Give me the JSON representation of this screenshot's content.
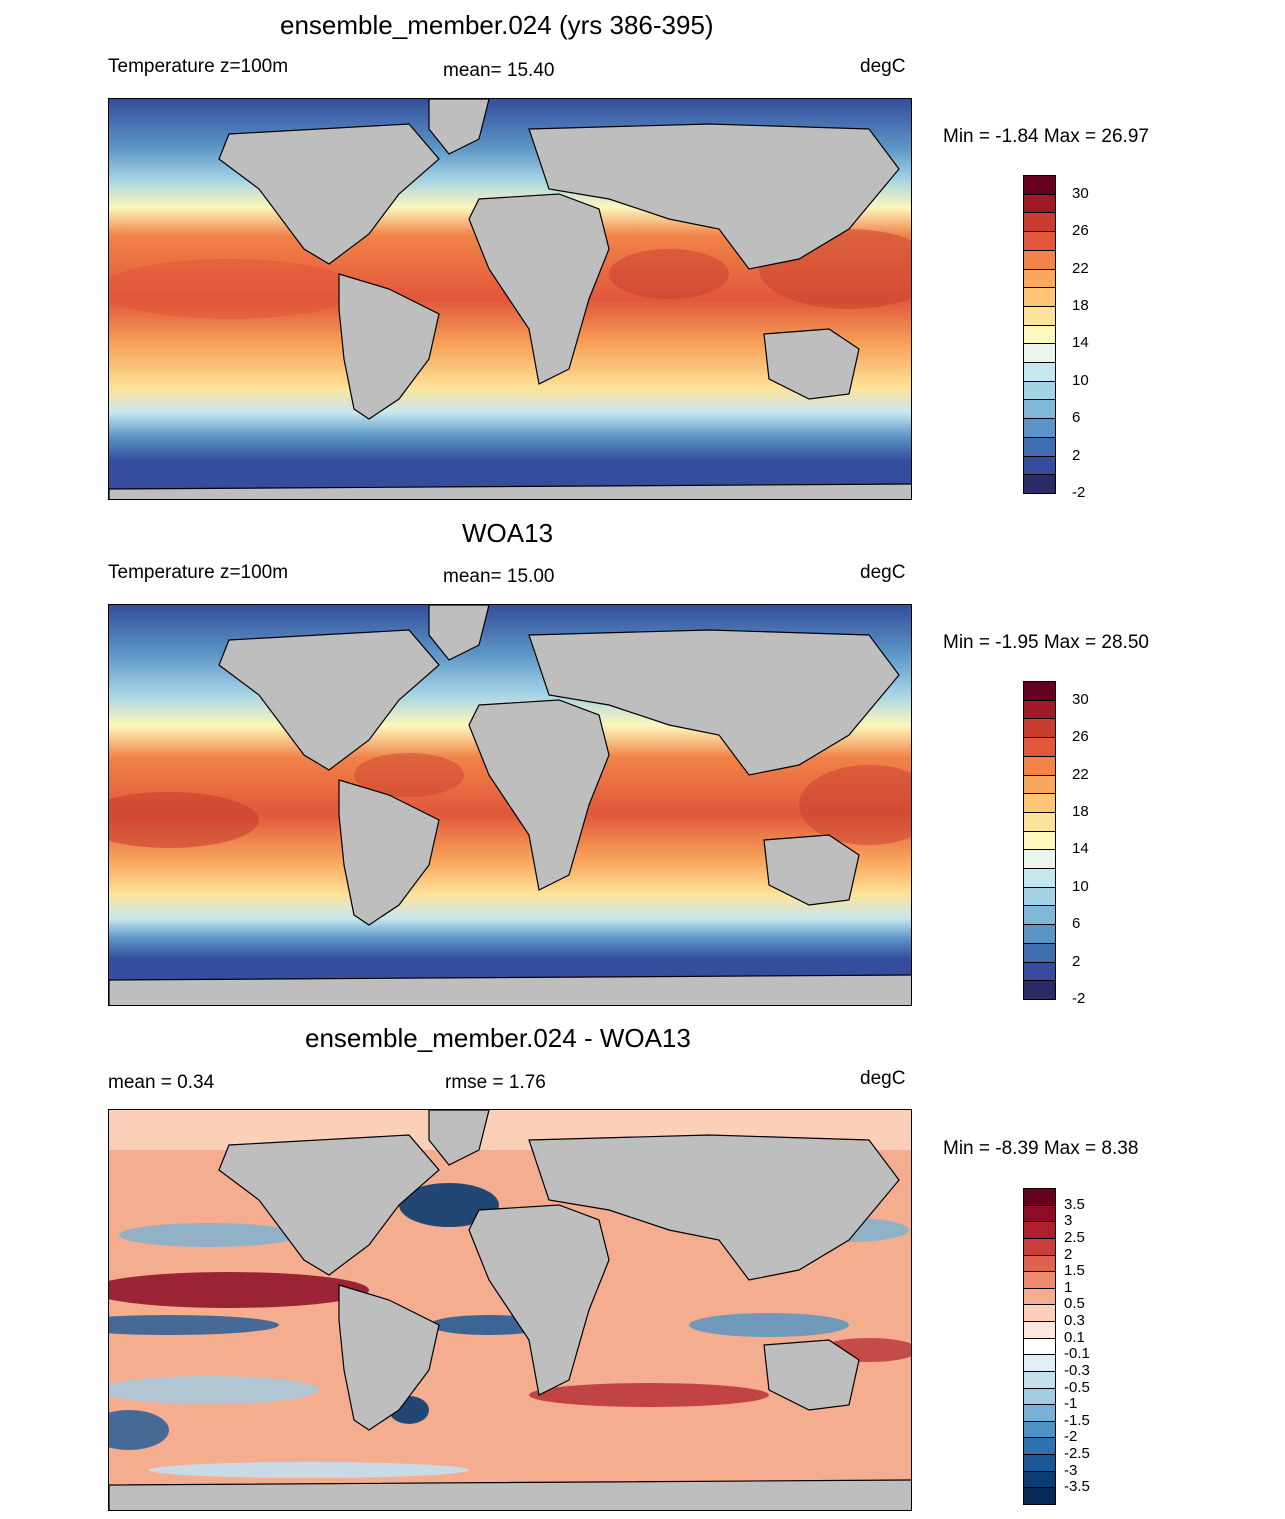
{
  "panels": [
    {
      "title": "ensemble_member.024 (yrs 386-395)",
      "left_label": "Temperature z=100m",
      "center_label": "mean=  15.40",
      "right_label": "degC",
      "minmax": "Min =  -1.84 Max =  26.97",
      "colorbar": {
        "labels": [
          "30",
          "26",
          "22",
          "18",
          "14",
          "10",
          "6",
          "2",
          "-2"
        ],
        "colors": [
          "#67001f",
          "#9e1a27",
          "#c83d30",
          "#e2573a",
          "#f18348",
          "#f9a85d",
          "#fdc677",
          "#fde39a",
          "#fdf7bc",
          "#e9f4ea",
          "#c7e7f0",
          "#a4d3e6",
          "#7fb7d8",
          "#5b95c6",
          "#3f6db0",
          "#354d9c",
          "#2a2c6a"
        ]
      }
    },
    {
      "title": "WOA13",
      "left_label": "Temperature z=100m",
      "center_label": "mean=  15.00",
      "right_label": "degC",
      "minmax": "Min =  -1.95 Max =  28.50",
      "colorbar": {
        "labels": [
          "30",
          "26",
          "22",
          "18",
          "14",
          "10",
          "6",
          "2",
          "-2"
        ],
        "colors": [
          "#67001f",
          "#9e1a27",
          "#c83d30",
          "#e2573a",
          "#f18348",
          "#f9a85d",
          "#fdc677",
          "#fde39a",
          "#fdf7bc",
          "#e9f4ea",
          "#c7e7f0",
          "#a4d3e6",
          "#7fb7d8",
          "#5b95c6",
          "#3f6db0",
          "#354d9c",
          "#2a2c6a"
        ]
      }
    },
    {
      "title": "ensemble_member.024 - WOA13",
      "left_label": "mean =   0.34",
      "center_label": "rmse =   1.76",
      "right_label": "degC",
      "minmax": "Min =  -8.39 Max =   8.38",
      "colorbar": {
        "labels": [
          "3.5",
          "3",
          "2.5",
          "2",
          "1.5",
          "1",
          "0.5",
          "0.3",
          "0.1",
          "-0.1",
          "-0.3",
          "-0.5",
          "-1",
          "-1.5",
          "-2",
          "-2.5",
          "-3",
          "-3.5"
        ],
        "colors": [
          "#67001f",
          "#8b0c24",
          "#b0202c",
          "#c93e3a",
          "#dd6350",
          "#ec8a6d",
          "#f5ad8f",
          "#fbcfb8",
          "#fde8dd",
          "#ffffff",
          "#e3eff7",
          "#c5dfee",
          "#a1cbe3",
          "#78b1d5",
          "#4f93c4",
          "#2f72b1",
          "#1b5797",
          "#0b3c72",
          "#082b55"
        ]
      }
    }
  ]
}
